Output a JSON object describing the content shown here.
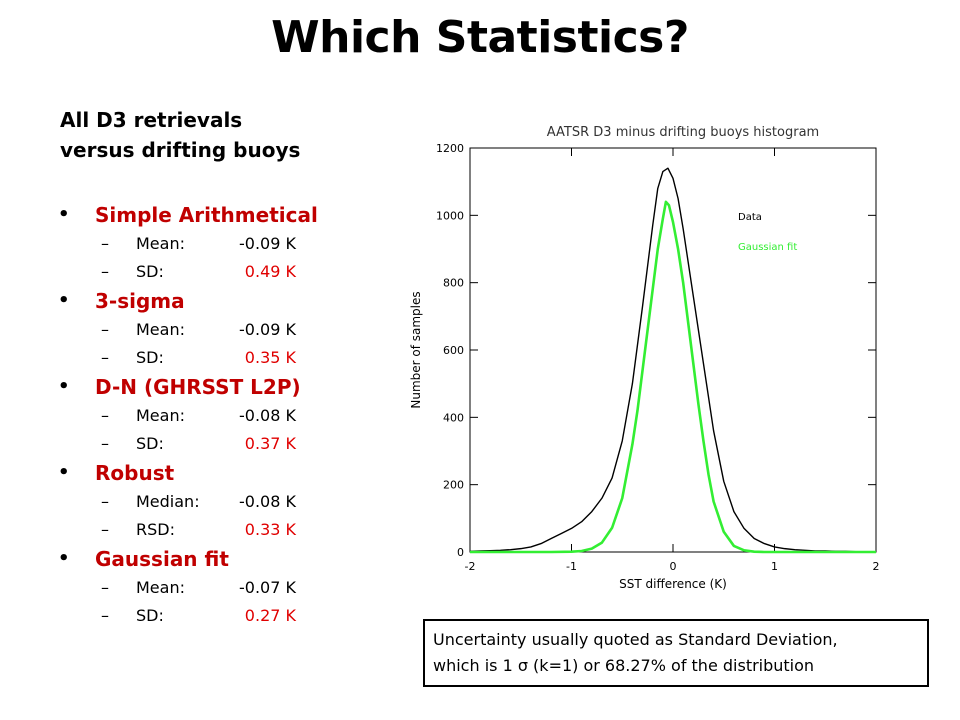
{
  "title": "Which Statistics?",
  "intro": [
    "All D3 retrievals",
    "versus drifting buoys"
  ],
  "stats": [
    {
      "name": "Simple Arithmetical",
      "rows": [
        {
          "label": "Mean:",
          "value": "-0.09 K",
          "red": false
        },
        {
          "label": "SD:",
          "value": "0.49 K",
          "red": true
        }
      ]
    },
    {
      "name": "3-sigma",
      "rows": [
        {
          "label": "Mean:",
          "value": "-0.09 K",
          "red": false
        },
        {
          "label": "SD:",
          "value": "0.35 K",
          "red": true
        }
      ]
    },
    {
      "name": "D-N (GHRSST L2P)",
      "rows": [
        {
          "label": "Mean:",
          "value": "-0.08 K",
          "red": false
        },
        {
          "label": "SD:",
          "value": "0.37 K",
          "red": true
        }
      ]
    },
    {
      "name": "Robust",
      "rows": [
        {
          "label": "Median:",
          "value": "-0.08 K",
          "red": false
        },
        {
          "label": "RSD:",
          "value": "0.33 K",
          "red": true
        }
      ]
    },
    {
      "name": "Gaussian fit",
      "rows": [
        {
          "label": "Mean:",
          "value": "-0.07 K",
          "red": false
        },
        {
          "label": "SD:",
          "value": "0.27 K",
          "red": true
        }
      ]
    }
  ],
  "colors": {
    "accent": "#c00000",
    "value_red": "#e00000",
    "fit": "#33ee33"
  },
  "chart_data": {
    "type": "line",
    "title": "AATSR D3 minus drifting buoys histogram",
    "xlabel": "SST difference (K)",
    "ylabel": "Number of samples",
    "xlim": [
      -2,
      2
    ],
    "ylim": [
      0,
      1200
    ],
    "xticks": [
      -2,
      -1,
      0,
      1,
      2
    ],
    "yticks": [
      0,
      200,
      400,
      600,
      800,
      1000,
      1200
    ],
    "legend": "top-right (text only)",
    "series": [
      {
        "name": "Data",
        "color": "#000000",
        "x": [
          -2.0,
          -1.9,
          -1.8,
          -1.7,
          -1.6,
          -1.5,
          -1.4,
          -1.3,
          -1.2,
          -1.1,
          -1.0,
          -0.9,
          -0.8,
          -0.7,
          -0.6,
          -0.5,
          -0.4,
          -0.3,
          -0.25,
          -0.2,
          -0.15,
          -0.1,
          -0.05,
          0.0,
          0.05,
          0.1,
          0.15,
          0.2,
          0.3,
          0.4,
          0.5,
          0.6,
          0.7,
          0.8,
          0.9,
          1.0,
          1.1,
          1.2,
          1.3,
          1.4,
          1.5,
          1.6,
          1.7,
          1.8,
          1.9,
          2.0
        ],
        "values": [
          2,
          3,
          4,
          5,
          7,
          10,
          15,
          25,
          40,
          55,
          70,
          90,
          120,
          160,
          220,
          330,
          500,
          730,
          850,
          970,
          1080,
          1130,
          1140,
          1110,
          1050,
          960,
          860,
          760,
          560,
          360,
          210,
          120,
          70,
          40,
          25,
          15,
          10,
          7,
          5,
          3,
          3,
          2,
          2,
          1,
          1,
          1
        ]
      },
      {
        "name": "Gaussian fit",
        "color": "#33ee33",
        "x": [
          -2.0,
          -1.8,
          -1.6,
          -1.4,
          -1.2,
          -1.0,
          -0.9,
          -0.8,
          -0.7,
          -0.6,
          -0.5,
          -0.4,
          -0.35,
          -0.3,
          -0.25,
          -0.2,
          -0.15,
          -0.1,
          -0.07,
          -0.04,
          0.0,
          0.05,
          0.1,
          0.15,
          0.2,
          0.25,
          0.3,
          0.35,
          0.4,
          0.5,
          0.6,
          0.7,
          0.8,
          0.9,
          1.0,
          1.2,
          1.4,
          1.6,
          1.8,
          2.0
        ],
        "values": [
          0,
          0,
          0,
          0,
          0,
          1,
          3,
          10,
          28,
          72,
          160,
          320,
          420,
          540,
          660,
          780,
          900,
          990,
          1040,
          1030,
          980,
          900,
          800,
          680,
          560,
          440,
          330,
          230,
          150,
          60,
          18,
          5,
          1,
          0,
          0,
          0,
          0,
          0,
          0,
          0
        ]
      }
    ]
  },
  "note": [
    "Uncertainty usually quoted as Standard Deviation,",
    "which is 1 σ (k=1) or 68.27% of the distribution"
  ]
}
